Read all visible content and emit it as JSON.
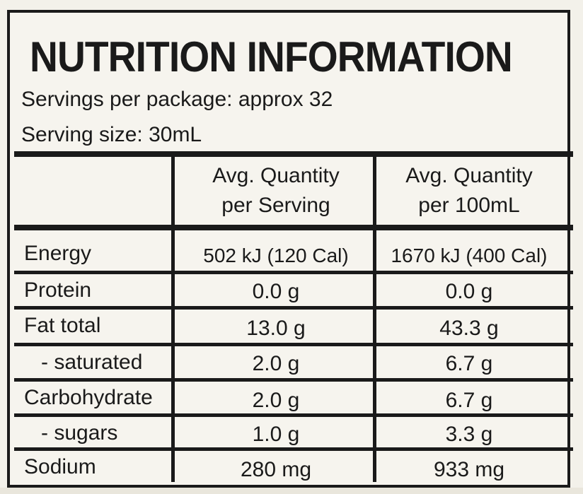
{
  "label": {
    "title": "NUTRITION INFORMATION",
    "servings_per_package": "Servings per package: approx 32",
    "serving_size": "Serving size: 30mL"
  },
  "table": {
    "headers": [
      "",
      "Avg. Quantity\nper Serving",
      "Avg. Quantity\nper 100mL"
    ],
    "header_per_serving_1": "Avg. Quantity",
    "header_per_serving_2": "per Serving",
    "header_per_100_1": "Avg. Quantity",
    "header_per_100_2": "per 100mL",
    "rows": [
      {
        "nutrient": "Energy",
        "per_serving": "502 kJ (120 Cal)",
        "per_100ml": "1670 kJ (400 Cal)"
      },
      {
        "nutrient": "Protein",
        "per_serving": "0.0 g",
        "per_100ml": "0.0 g"
      },
      {
        "nutrient": "Fat total",
        "per_serving": "13.0 g",
        "per_100ml": "43.3 g"
      },
      {
        "nutrient": "- saturated",
        "per_serving": "2.0 g",
        "per_100ml": "6.7 g"
      },
      {
        "nutrient": "Carbohydrate",
        "per_serving": "2.0 g",
        "per_100ml": "6.7 g"
      },
      {
        "nutrient": "- sugars",
        "per_serving": "1.0 g",
        "per_100ml": "3.3 g"
      },
      {
        "nutrient": "Sodium",
        "per_serving": "280 mg",
        "per_100ml": "933 mg"
      }
    ]
  }
}
